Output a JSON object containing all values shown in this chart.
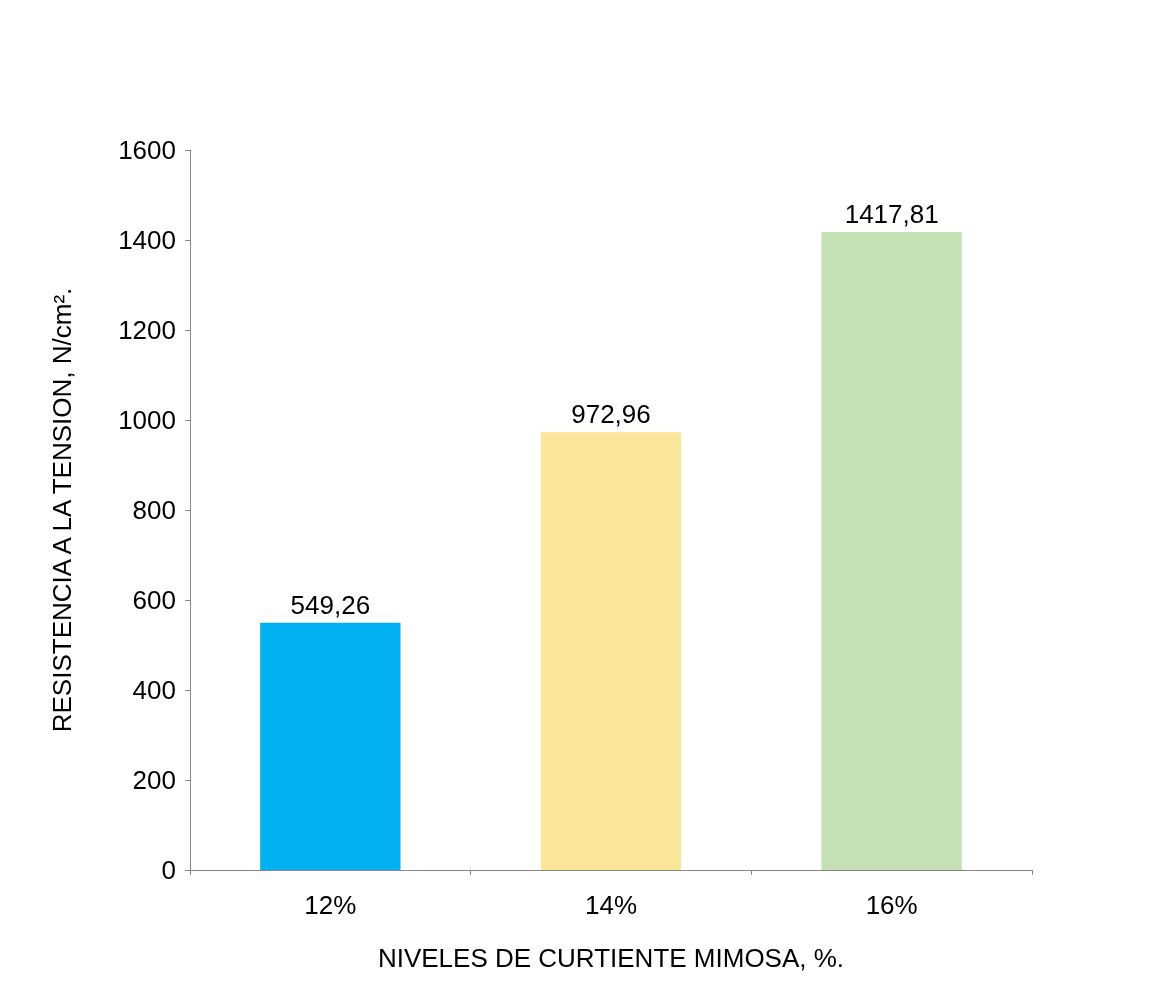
{
  "chart_data": {
    "type": "bar",
    "xlabel": "NIVELES DE CURTIENTE MIMOSA, %.",
    "ylabel": "RESISTENCIA A LA TENSION, N/cm².",
    "categories": [
      "12%",
      "14%",
      "16%"
    ],
    "values": [
      549.26,
      972.96,
      1417.81
    ],
    "colors": [
      "#00b0f0",
      "#fce699",
      "#c5e0b4"
    ],
    "value_labels": [
      "549,26",
      "972,96",
      "1417,81"
    ],
    "ylim": [
      0,
      1600
    ],
    "yticks": [
      0,
      200,
      400,
      600,
      800,
      1000,
      1200,
      1400,
      1600
    ],
    "grid": false
  }
}
